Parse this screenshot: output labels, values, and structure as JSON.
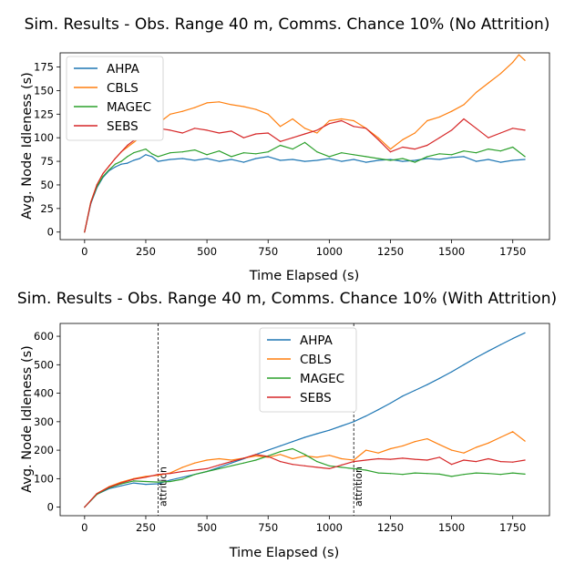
{
  "colors": {
    "AHPA": "#1f77b4",
    "CBLS": "#ff7f0e",
    "MAGEC": "#2ca02c",
    "SEBS": "#d62728"
  },
  "chart_data": [
    {
      "type": "line",
      "title": "Sim. Results - Obs. Range 40 m, Comms. Chance 10% (No Attrition)",
      "xlabel": "Time Elapsed (s)",
      "ylabel": "Avg. Node Idleness (s)",
      "xlim": [
        -100,
        1900
      ],
      "ylim": [
        -8,
        190
      ],
      "xticks": [
        0,
        250,
        500,
        750,
        1000,
        1250,
        1500,
        1750
      ],
      "yticks": [
        0,
        25,
        50,
        75,
        100,
        125,
        150,
        175
      ],
      "legend": "top-left",
      "series": [
        {
          "name": "AHPA",
          "x": [
            0,
            25,
            50,
            75,
            100,
            125,
            150,
            175,
            200,
            225,
            250,
            275,
            300,
            350,
            400,
            450,
            500,
            550,
            600,
            650,
            700,
            750,
            800,
            850,
            900,
            950,
            1000,
            1050,
            1100,
            1150,
            1200,
            1250,
            1300,
            1350,
            1400,
            1450,
            1500,
            1550,
            1600,
            1650,
            1700,
            1750,
            1800
          ],
          "y": [
            0,
            30,
            47,
            58,
            65,
            69,
            72,
            73,
            76,
            78,
            82,
            80,
            75,
            77,
            78,
            76,
            78,
            75,
            77,
            74,
            78,
            80,
            76,
            77,
            75,
            76,
            78,
            75,
            77,
            74,
            76,
            77,
            75,
            76,
            78,
            77,
            79,
            80,
            75,
            77,
            74,
            76,
            77
          ]
        },
        {
          "name": "CBLS",
          "x": [
            0,
            25,
            50,
            75,
            100,
            125,
            150,
            175,
            200,
            225,
            250,
            275,
            300,
            325,
            350,
            400,
            450,
            500,
            550,
            600,
            650,
            700,
            750,
            800,
            850,
            900,
            950,
            1000,
            1050,
            1100,
            1150,
            1200,
            1250,
            1300,
            1350,
            1400,
            1450,
            1500,
            1550,
            1600,
            1650,
            1700,
            1750,
            1775,
            1800
          ],
          "y": [
            0,
            32,
            50,
            62,
            70,
            78,
            85,
            90,
            95,
            100,
            105,
            110,
            115,
            120,
            125,
            128,
            132,
            137,
            138,
            135,
            133,
            130,
            125,
            112,
            120,
            110,
            105,
            118,
            120,
            118,
            110,
            100,
            88,
            98,
            105,
            118,
            122,
            128,
            135,
            148,
            158,
            168,
            180,
            188,
            182
          ]
        },
        {
          "name": "MAGEC",
          "x": [
            0,
            25,
            50,
            75,
            100,
            125,
            150,
            175,
            200,
            225,
            250,
            275,
            300,
            350,
            400,
            450,
            500,
            550,
            600,
            650,
            700,
            750,
            800,
            850,
            900,
            950,
            1000,
            1050,
            1100,
            1150,
            1200,
            1250,
            1300,
            1350,
            1400,
            1450,
            1500,
            1550,
            1600,
            1650,
            1700,
            1750,
            1800
          ],
          "y": [
            0,
            31,
            48,
            59,
            66,
            72,
            75,
            80,
            84,
            86,
            88,
            83,
            80,
            84,
            85,
            87,
            82,
            86,
            80,
            84,
            83,
            85,
            92,
            88,
            95,
            85,
            80,
            84,
            82,
            80,
            78,
            76,
            78,
            74,
            80,
            83,
            82,
            86,
            84,
            88,
            86,
            90,
            80
          ]
        },
        {
          "name": "SEBS",
          "x": [
            0,
            25,
            50,
            75,
            100,
            125,
            150,
            175,
            200,
            225,
            250,
            275,
            300,
            350,
            400,
            450,
            500,
            550,
            600,
            650,
            700,
            750,
            800,
            850,
            900,
            950,
            1000,
            1050,
            1100,
            1150,
            1200,
            1250,
            1300,
            1350,
            1400,
            1450,
            1500,
            1550,
            1600,
            1650,
            1700,
            1750,
            1800
          ],
          "y": [
            0,
            31,
            50,
            62,
            70,
            78,
            85,
            92,
            97,
            100,
            104,
            106,
            110,
            108,
            105,
            110,
            108,
            105,
            107,
            100,
            104,
            105,
            96,
            100,
            104,
            108,
            115,
            118,
            112,
            110,
            98,
            85,
            90,
            88,
            92,
            100,
            108,
            120,
            110,
            100,
            105,
            110,
            108
          ]
        }
      ]
    },
    {
      "type": "line",
      "title": "Sim. Results - Obs. Range 40 m, Comms. Chance 10% (With Attrition)",
      "xlabel": "Time Elapsed (s)",
      "ylabel": "Avg. Node Idleness (s)",
      "xlim": [
        -100,
        1900
      ],
      "ylim": [
        -30,
        645
      ],
      "xticks": [
        0,
        250,
        500,
        750,
        1000,
        1250,
        1500,
        1750
      ],
      "yticks": [
        0,
        100,
        200,
        300,
        400,
        500,
        600
      ],
      "legend": "upper center",
      "annotations": [
        {
          "x": 300,
          "text": "attrition"
        },
        {
          "x": 1100,
          "text": "attrition"
        }
      ],
      "series": [
        {
          "name": "AHPA",
          "x": [
            0,
            50,
            100,
            150,
            200,
            250,
            300,
            350,
            400,
            450,
            500,
            550,
            600,
            650,
            700,
            750,
            800,
            850,
            900,
            950,
            1000,
            1050,
            1100,
            1150,
            1200,
            1250,
            1300,
            1350,
            1400,
            1450,
            1500,
            1550,
            1600,
            1650,
            1700,
            1750,
            1800
          ],
          "y": [
            0,
            45,
            65,
            75,
            85,
            80,
            82,
            95,
            105,
            115,
            125,
            140,
            155,
            170,
            185,
            200,
            215,
            230,
            245,
            258,
            270,
            285,
            300,
            320,
            342,
            365,
            390,
            410,
            430,
            452,
            475,
            500,
            525,
            548,
            570,
            592,
            612
          ]
        },
        {
          "name": "CBLS",
          "x": [
            0,
            50,
            100,
            150,
            200,
            250,
            300,
            350,
            400,
            450,
            500,
            550,
            600,
            650,
            700,
            750,
            800,
            850,
            900,
            950,
            1000,
            1050,
            1100,
            1150,
            1200,
            1250,
            1300,
            1350,
            1400,
            1450,
            1500,
            1550,
            1600,
            1650,
            1700,
            1750,
            1800
          ],
          "y": [
            0,
            48,
            72,
            88,
            100,
            108,
            112,
            120,
            140,
            155,
            165,
            170,
            165,
            172,
            180,
            175,
            185,
            170,
            180,
            175,
            182,
            170,
            165,
            200,
            190,
            205,
            215,
            230,
            240,
            220,
            200,
            190,
            210,
            225,
            245,
            265,
            232
          ]
        },
        {
          "name": "MAGEC",
          "x": [
            0,
            50,
            100,
            150,
            200,
            250,
            300,
            350,
            400,
            450,
            500,
            550,
            600,
            650,
            700,
            750,
            800,
            850,
            900,
            950,
            1000,
            1050,
            1100,
            1150,
            1200,
            1250,
            1300,
            1350,
            1400,
            1450,
            1500,
            1550,
            1600,
            1650,
            1700,
            1750,
            1800
          ],
          "y": [
            0,
            45,
            68,
            82,
            92,
            90,
            88,
            90,
            98,
            115,
            125,
            135,
            145,
            155,
            165,
            180,
            195,
            205,
            185,
            160,
            145,
            140,
            135,
            130,
            120,
            118,
            115,
            120,
            118,
            116,
            108,
            115,
            120,
            118,
            115,
            120,
            116
          ]
        },
        {
          "name": "SEBS",
          "x": [
            0,
            50,
            100,
            150,
            200,
            250,
            300,
            350,
            400,
            450,
            500,
            550,
            600,
            650,
            700,
            750,
            800,
            850,
            900,
            950,
            1000,
            1050,
            1100,
            1150,
            1200,
            1250,
            1300,
            1350,
            1400,
            1450,
            1500,
            1550,
            1600,
            1650,
            1700,
            1750,
            1800
          ],
          "y": [
            0,
            47,
            70,
            85,
            98,
            105,
            115,
            118,
            125,
            130,
            135,
            148,
            160,
            172,
            185,
            178,
            160,
            150,
            145,
            140,
            135,
            148,
            160,
            165,
            170,
            168,
            172,
            168,
            165,
            175,
            150,
            165,
            160,
            170,
            160,
            158,
            165
          ]
        }
      ]
    }
  ]
}
